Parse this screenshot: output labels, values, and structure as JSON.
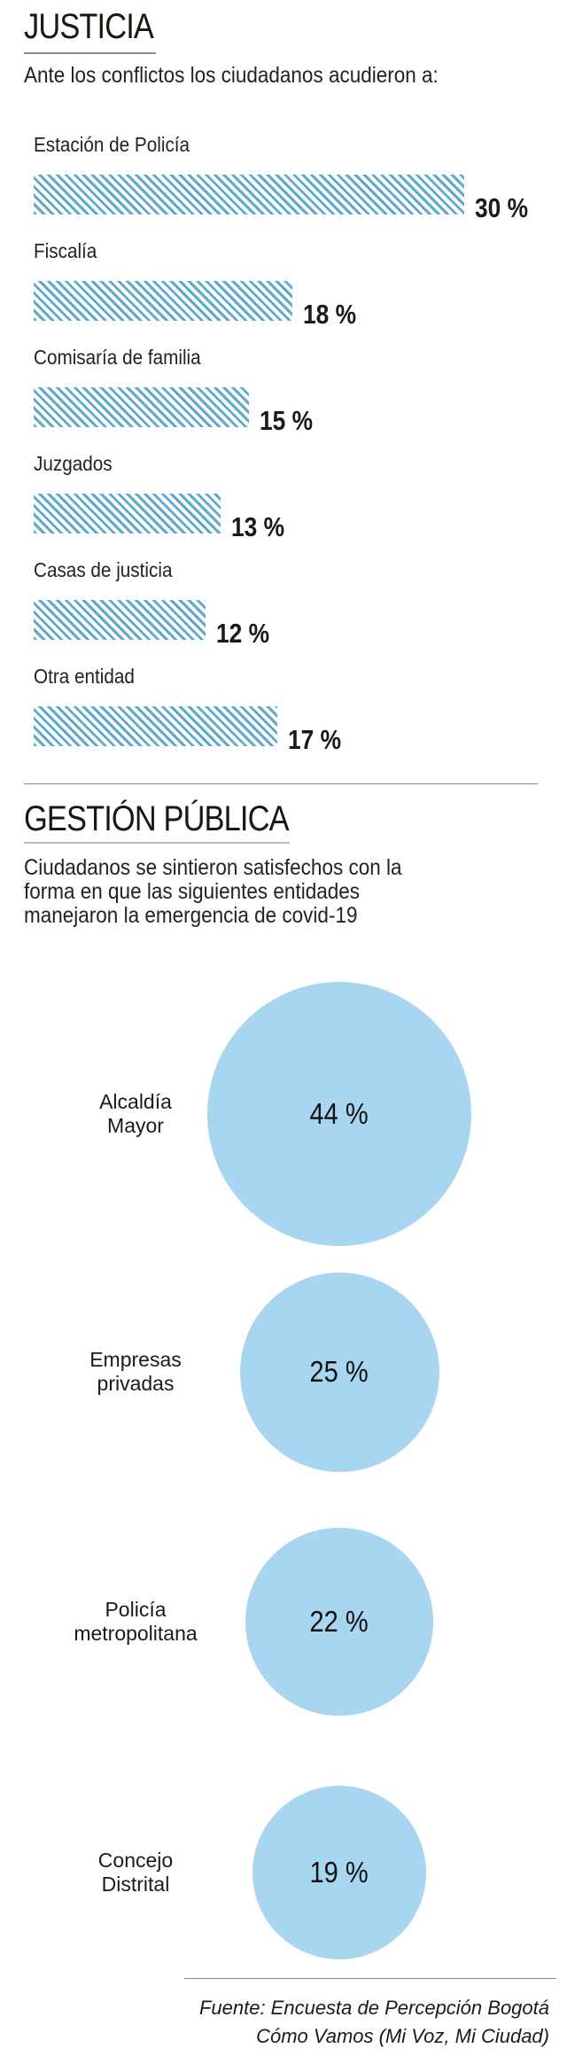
{
  "justicia": {
    "title": "JUSTICIA",
    "subtitle": "Ante los conflictos los ciudadanos acudieron a:"
  },
  "gestion": {
    "title": "GESTIÓN PÚBLICA",
    "subtitle_lines": [
      "Ciudadanos se sintieron satisfechos con la",
      "forma en que las siguientes entidades",
      "manejaron la emergencia de covid-19"
    ]
  },
  "footer": {
    "line1": "Fuente: Encuesta de Percepción Bogotá",
    "line2": "Cómo Vamos (Mi Voz, Mi Ciudad)"
  },
  "colors": {
    "bar_hatch": "#5ea9cc",
    "circle": "#a8d6f1"
  },
  "chart_data": [
    {
      "type": "bar",
      "orientation": "horizontal",
      "title": "Ante los conflictos los ciudadanos acudieron a:",
      "categories": [
        "Estación de Policía",
        "Fiscalía",
        "Comisaría de familia",
        "Juzgados",
        "Casas de justicia",
        "Otra entidad"
      ],
      "values": [
        30,
        18,
        15,
        13,
        12,
        17
      ],
      "labels": [
        "30 %",
        "18 %",
        "15 %",
        "13 %",
        "12 %",
        "17 %"
      ],
      "unit": "%"
    },
    {
      "type": "bubble",
      "title": "Ciudadanos se sintieron satisfechos con la forma en que las siguientes entidades manejaron la emergencia de covid-19",
      "categories": [
        [
          "Alcaldía",
          "Mayor"
        ],
        [
          "Empresas",
          "privadas"
        ],
        [
          "Policía",
          "metropolitana"
        ],
        [
          "Concejo",
          "Distrital"
        ]
      ],
      "values": [
        44,
        25,
        22,
        19
      ],
      "labels": [
        "44 %",
        "25 %",
        "22 %",
        "19 %"
      ],
      "unit": "%"
    }
  ]
}
